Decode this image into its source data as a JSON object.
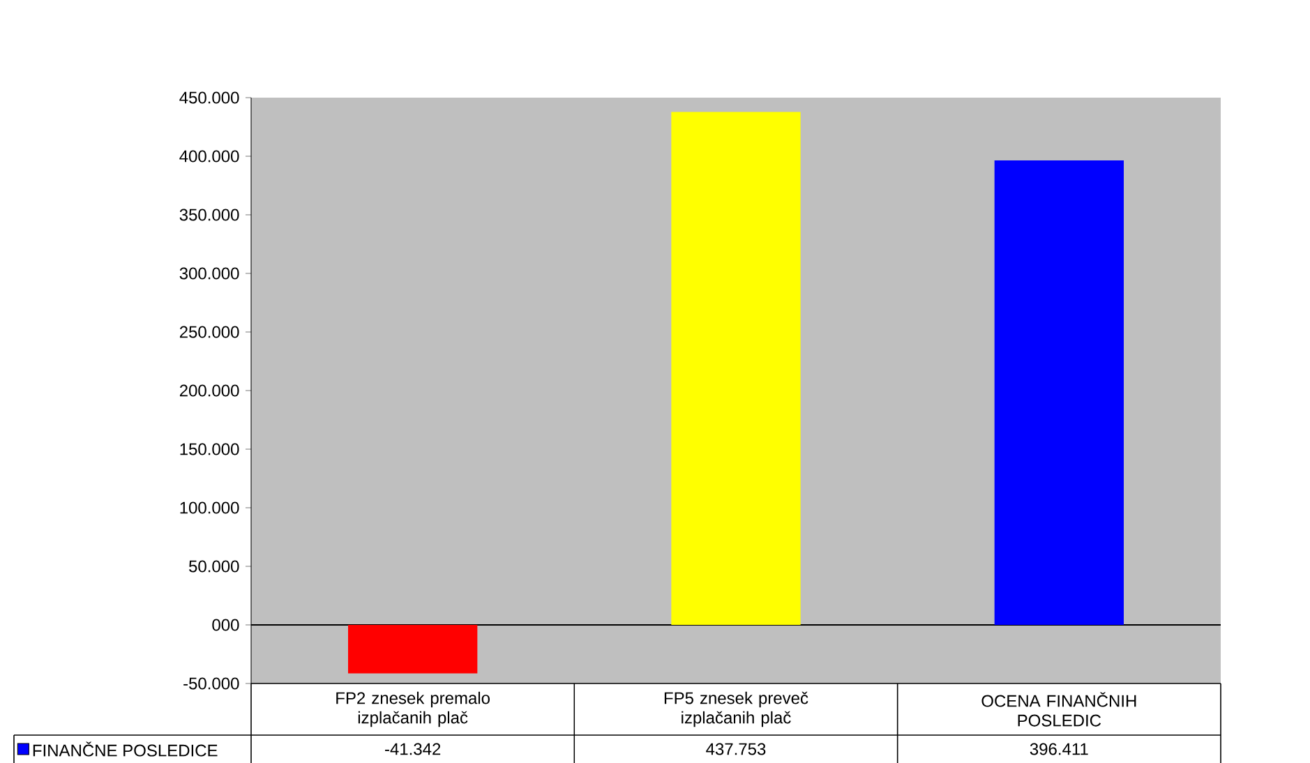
{
  "chart_data": {
    "type": "bar",
    "categories": [
      "FP2 znesek premalo izplačanih plač",
      "FP5 znesek preveč izplačanih plač",
      "OCENA FINANČNIH POSLEDIC"
    ],
    "series": [
      {
        "name": "FINANČNE POSLEDICE",
        "colors": [
          "#ff0000",
          "#ffff00",
          "#0000ff"
        ],
        "values": [
          -41342,
          437753,
          396411
        ],
        "value_labels": [
          "-41.342",
          "437.753",
          "396.411"
        ]
      }
    ],
    "ylim": [
      -50000,
      450000
    ],
    "yticks": [
      {
        "value": -50000,
        "label": "-50.000"
      },
      {
        "value": 0,
        "label": "000"
      },
      {
        "value": 50000,
        "label": "50.000"
      },
      {
        "value": 100000,
        "label": "100.000"
      },
      {
        "value": 150000,
        "label": "150.000"
      },
      {
        "value": 200000,
        "label": "200.000"
      },
      {
        "value": 250000,
        "label": "250.000"
      },
      {
        "value": 300000,
        "label": "300.000"
      },
      {
        "value": 350000,
        "label": "350.000"
      },
      {
        "value": 400000,
        "label": "400.000"
      },
      {
        "value": 450000,
        "label": "450.000"
      }
    ],
    "legend": "bottom left"
  }
}
